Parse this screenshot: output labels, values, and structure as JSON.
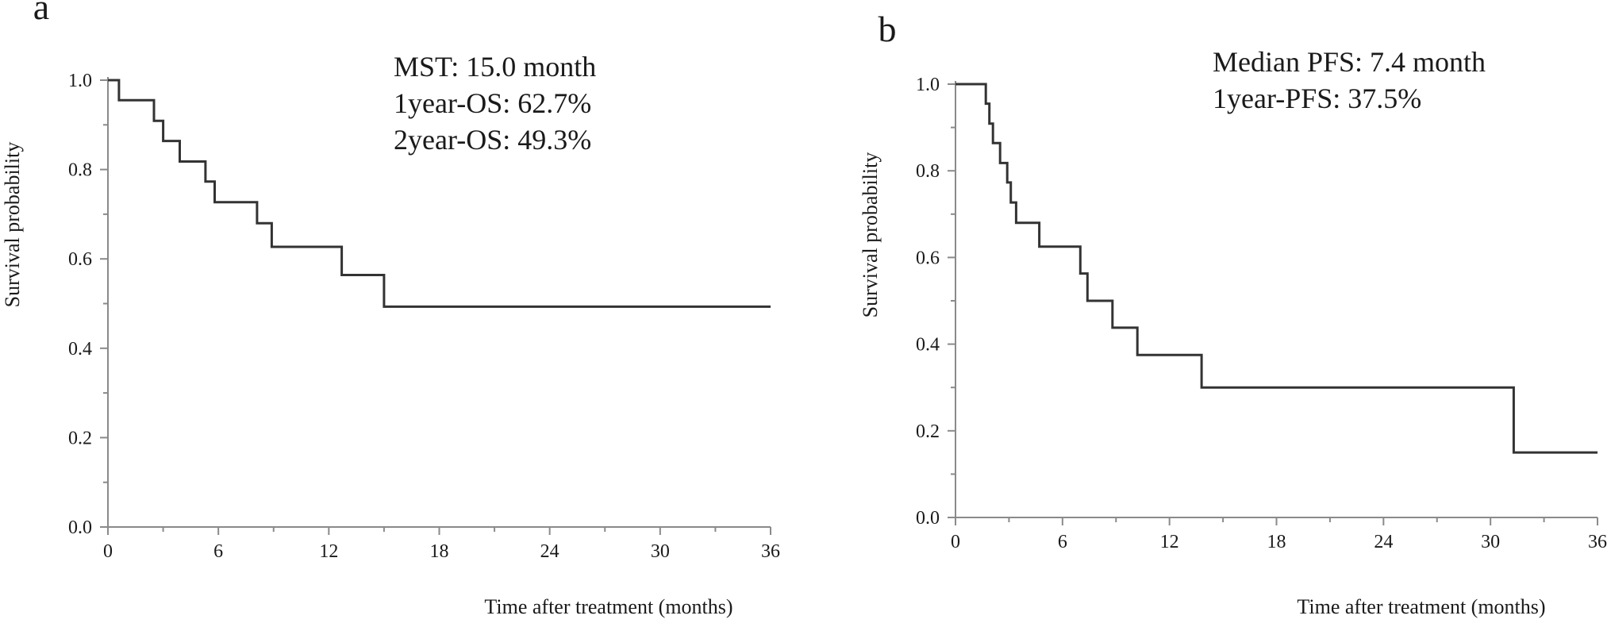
{
  "chart_data": [
    {
      "type": "line",
      "panel_label": "a",
      "title": "",
      "xlabel": "Time after treatment (months)",
      "ylabel": "Survival probability",
      "xlim": [
        0,
        36
      ],
      "ylim": [
        0,
        1
      ],
      "x_ticks": [
        0,
        6,
        12,
        18,
        24,
        30,
        36
      ],
      "x_tick_labels": [
        "0",
        "6",
        "12",
        "18",
        "24",
        "30",
        "36"
      ],
      "y_ticks": [
        0,
        0.2,
        0.4,
        0.6,
        0.8,
        1.0
      ],
      "y_tick_labels": [
        "0.0",
        "0.2",
        "0.4",
        "0.6",
        "0.8",
        "1.0"
      ],
      "grid": false,
      "legend": "none",
      "annotations": [
        "MST:  15.0 month",
        "1year-OS: 62.7%",
        "2year-OS: 49.3%"
      ],
      "series": [
        {
          "step": true,
          "points": [
            [
              0,
              1.0
            ],
            [
              0.6,
              1.0
            ],
            [
              0.6,
              0.955
            ],
            [
              2.5,
              0.955
            ],
            [
              2.5,
              0.909
            ],
            [
              3.0,
              0.909
            ],
            [
              3.0,
              0.864
            ],
            [
              3.9,
              0.864
            ],
            [
              3.9,
              0.818
            ],
            [
              5.3,
              0.818
            ],
            [
              5.3,
              0.773
            ],
            [
              5.8,
              0.773
            ],
            [
              5.8,
              0.727
            ],
            [
              8.1,
              0.727
            ],
            [
              8.1,
              0.68
            ],
            [
              8.9,
              0.68
            ],
            [
              8.9,
              0.627
            ],
            [
              12.7,
              0.627
            ],
            [
              12.7,
              0.564
            ],
            [
              15.0,
              0.564
            ],
            [
              15.0,
              0.493
            ],
            [
              36,
              0.493
            ]
          ]
        }
      ]
    },
    {
      "type": "line",
      "panel_label": "b",
      "title": "",
      "xlabel": "Time after treatment (months)",
      "ylabel": "Survival probability",
      "xlim": [
        0,
        36
      ],
      "ylim": [
        0,
        1
      ],
      "x_ticks": [
        0,
        6,
        12,
        18,
        24,
        30,
        36
      ],
      "x_tick_labels": [
        "0",
        "6",
        "12",
        "18",
        "24",
        "30",
        "36"
      ],
      "y_ticks": [
        0,
        0.2,
        0.4,
        0.6,
        0.8,
        1.0
      ],
      "y_tick_labels": [
        "0.0",
        "0.2",
        "0.4",
        "0.6",
        "0.8",
        "1.0"
      ],
      "grid": false,
      "legend": "none",
      "annotations": [
        "Median PFS: 7.4 month",
        "1year-PFS: 37.5%"
      ],
      "series": [
        {
          "step": true,
          "points": [
            [
              0,
              1.0
            ],
            [
              1.7,
              1.0
            ],
            [
              1.7,
              0.955
            ],
            [
              1.9,
              0.955
            ],
            [
              1.9,
              0.909
            ],
            [
              2.1,
              0.909
            ],
            [
              2.1,
              0.864
            ],
            [
              2.5,
              0.864
            ],
            [
              2.5,
              0.818
            ],
            [
              2.9,
              0.818
            ],
            [
              2.9,
              0.773
            ],
            [
              3.1,
              0.773
            ],
            [
              3.1,
              0.727
            ],
            [
              3.4,
              0.727
            ],
            [
              3.4,
              0.68
            ],
            [
              4.7,
              0.68
            ],
            [
              4.7,
              0.625
            ],
            [
              7.0,
              0.625
            ],
            [
              7.0,
              0.563
            ],
            [
              7.4,
              0.563
            ],
            [
              7.4,
              0.5
            ],
            [
              8.8,
              0.5
            ],
            [
              8.8,
              0.438
            ],
            [
              10.2,
              0.438
            ],
            [
              10.2,
              0.375
            ],
            [
              13.8,
              0.375
            ],
            [
              13.8,
              0.3
            ],
            [
              31.3,
              0.3
            ],
            [
              31.3,
              0.15
            ],
            [
              36,
              0.15
            ]
          ]
        }
      ]
    }
  ]
}
